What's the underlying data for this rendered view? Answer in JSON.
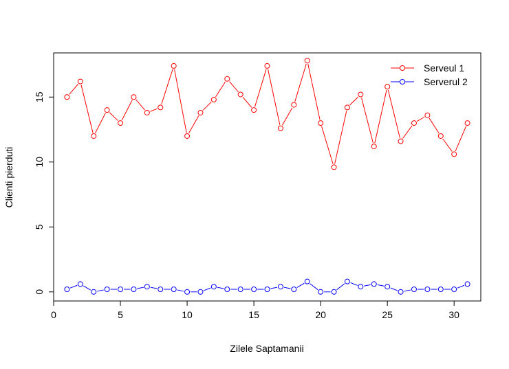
{
  "chart_data": {
    "type": "line",
    "title": "",
    "xlabel": "Zilele Saptamanii",
    "ylabel": "Clienti pierduti",
    "xlim": [
      0,
      32
    ],
    "ylim": [
      -0.7,
      18.4
    ],
    "xticks": [
      0,
      5,
      10,
      15,
      20,
      25,
      30
    ],
    "yticks": [
      0,
      5,
      10,
      15
    ],
    "grid": false,
    "legend_position": "top-right",
    "x": [
      1,
      2,
      3,
      4,
      5,
      6,
      7,
      8,
      9,
      10,
      11,
      12,
      13,
      14,
      15,
      16,
      17,
      18,
      19,
      20,
      21,
      22,
      23,
      24,
      25,
      26,
      27,
      28,
      29,
      30,
      31
    ],
    "series": [
      {
        "name": "Serveul 1",
        "color": "#ff0000",
        "values": [
          15.0,
          16.2,
          12.0,
          14.0,
          13.0,
          15.0,
          13.8,
          14.2,
          17.4,
          12.0,
          13.8,
          14.8,
          16.4,
          15.2,
          14.0,
          17.4,
          12.6,
          14.4,
          17.8,
          13.0,
          9.6,
          14.2,
          15.2,
          11.2,
          15.8,
          11.6,
          13.0,
          13.6,
          12.0,
          10.6,
          13.0
        ]
      },
      {
        "name": "Serverul 2",
        "color": "#0000ff",
        "values": [
          0.2,
          0.6,
          0.0,
          0.2,
          0.2,
          0.2,
          0.4,
          0.2,
          0.2,
          0.0,
          0.0,
          0.4,
          0.2,
          0.2,
          0.2,
          0.2,
          0.4,
          0.2,
          0.8,
          0.0,
          0.0,
          0.8,
          0.4,
          0.6,
          0.4,
          0.0,
          0.2,
          0.2,
          0.2,
          0.2,
          0.6
        ]
      }
    ]
  }
}
